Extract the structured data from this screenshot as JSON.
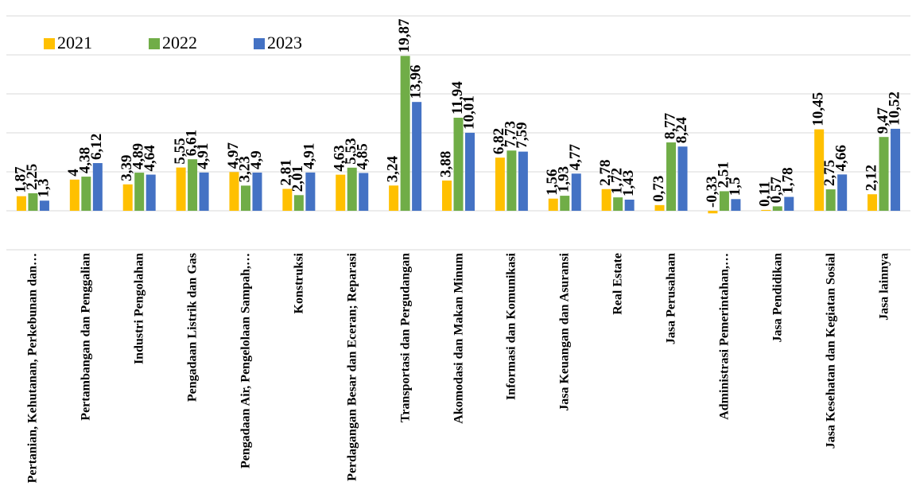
{
  "chart_data": {
    "type": "bar",
    "categories": [
      "Pertanian, Kehutanan, Perkebunan dan…",
      "Pertambangan dan Penggalian",
      "Industri Pengolahan",
      "Pengadaan Listrik dan Gas",
      "Pengadaan Air, Pengelolaan Sampah,…",
      "Konstruksi",
      "Perdagangan Besar dan Eceran; Reparasi",
      "Transportasi dan Pergudangan",
      "Akomodasi dan Makan Minum",
      "Informasi dan Komunikasi",
      "Jasa Keuangan dan Asuransi",
      "Real Estate",
      "Jasa Perusahaan",
      "Administrasi Pemerintahan,…",
      "Jasa Pendidikan",
      "Jasa Kesehatan dan Kegiatan Sosial",
      "Jasa lainnya"
    ],
    "series": [
      {
        "name": "2021",
        "color": "#ffc000",
        "values": [
          1.87,
          4,
          3.39,
          5.55,
          4.97,
          2.81,
          4.63,
          3.24,
          3.88,
          6.82,
          1.56,
          2.78,
          0.73,
          -0.33,
          0.11,
          10.45,
          2.12
        ],
        "value_labels": [
          "1,87",
          "4",
          "3,39",
          "5,55",
          "4,97",
          "2,81",
          "4,63",
          "3,24",
          "3,88",
          "6,82",
          "1,56",
          "2,78",
          "0,73",
          "-0,33",
          "0,11",
          "10,45",
          "2,12"
        ]
      },
      {
        "name": "2022",
        "color": "#70ad47",
        "values": [
          2.25,
          4.38,
          4.89,
          6.61,
          3.23,
          2.01,
          5.53,
          19.87,
          11.94,
          7.73,
          1.93,
          1.72,
          8.77,
          2.51,
          0.57,
          2.75,
          9.47
        ],
        "value_labels": [
          "2,25",
          "4,38",
          "4,89",
          "6,61",
          "3,23",
          "2,01",
          "5,53",
          "19,87",
          "11,94",
          "7,73",
          "1,93",
          "1,72",
          "8,77",
          "2,51",
          "0,57",
          "2,75",
          "9,47"
        ]
      },
      {
        "name": "2023",
        "color": "#4472c4",
        "values": [
          1.3,
          6.12,
          4.64,
          4.91,
          4.9,
          4.91,
          4.85,
          13.96,
          10.01,
          7.59,
          4.77,
          1.43,
          8.24,
          1.5,
          1.78,
          4.66,
          10.52
        ],
        "value_labels": [
          "1,3",
          "6,12",
          "4,64",
          "4,91",
          "4,9",
          "4,91",
          "4,85",
          "13,96",
          "10,01",
          "7,59",
          "4,77",
          "1,43",
          "8,24",
          "1,5",
          "1,78",
          "4,66",
          "10,52"
        ]
      }
    ],
    "ylim": [
      -5,
      25
    ],
    "yticks": [
      -5,
      0,
      5,
      10,
      15,
      20,
      25
    ],
    "grid": true,
    "legend": "top-left"
  }
}
